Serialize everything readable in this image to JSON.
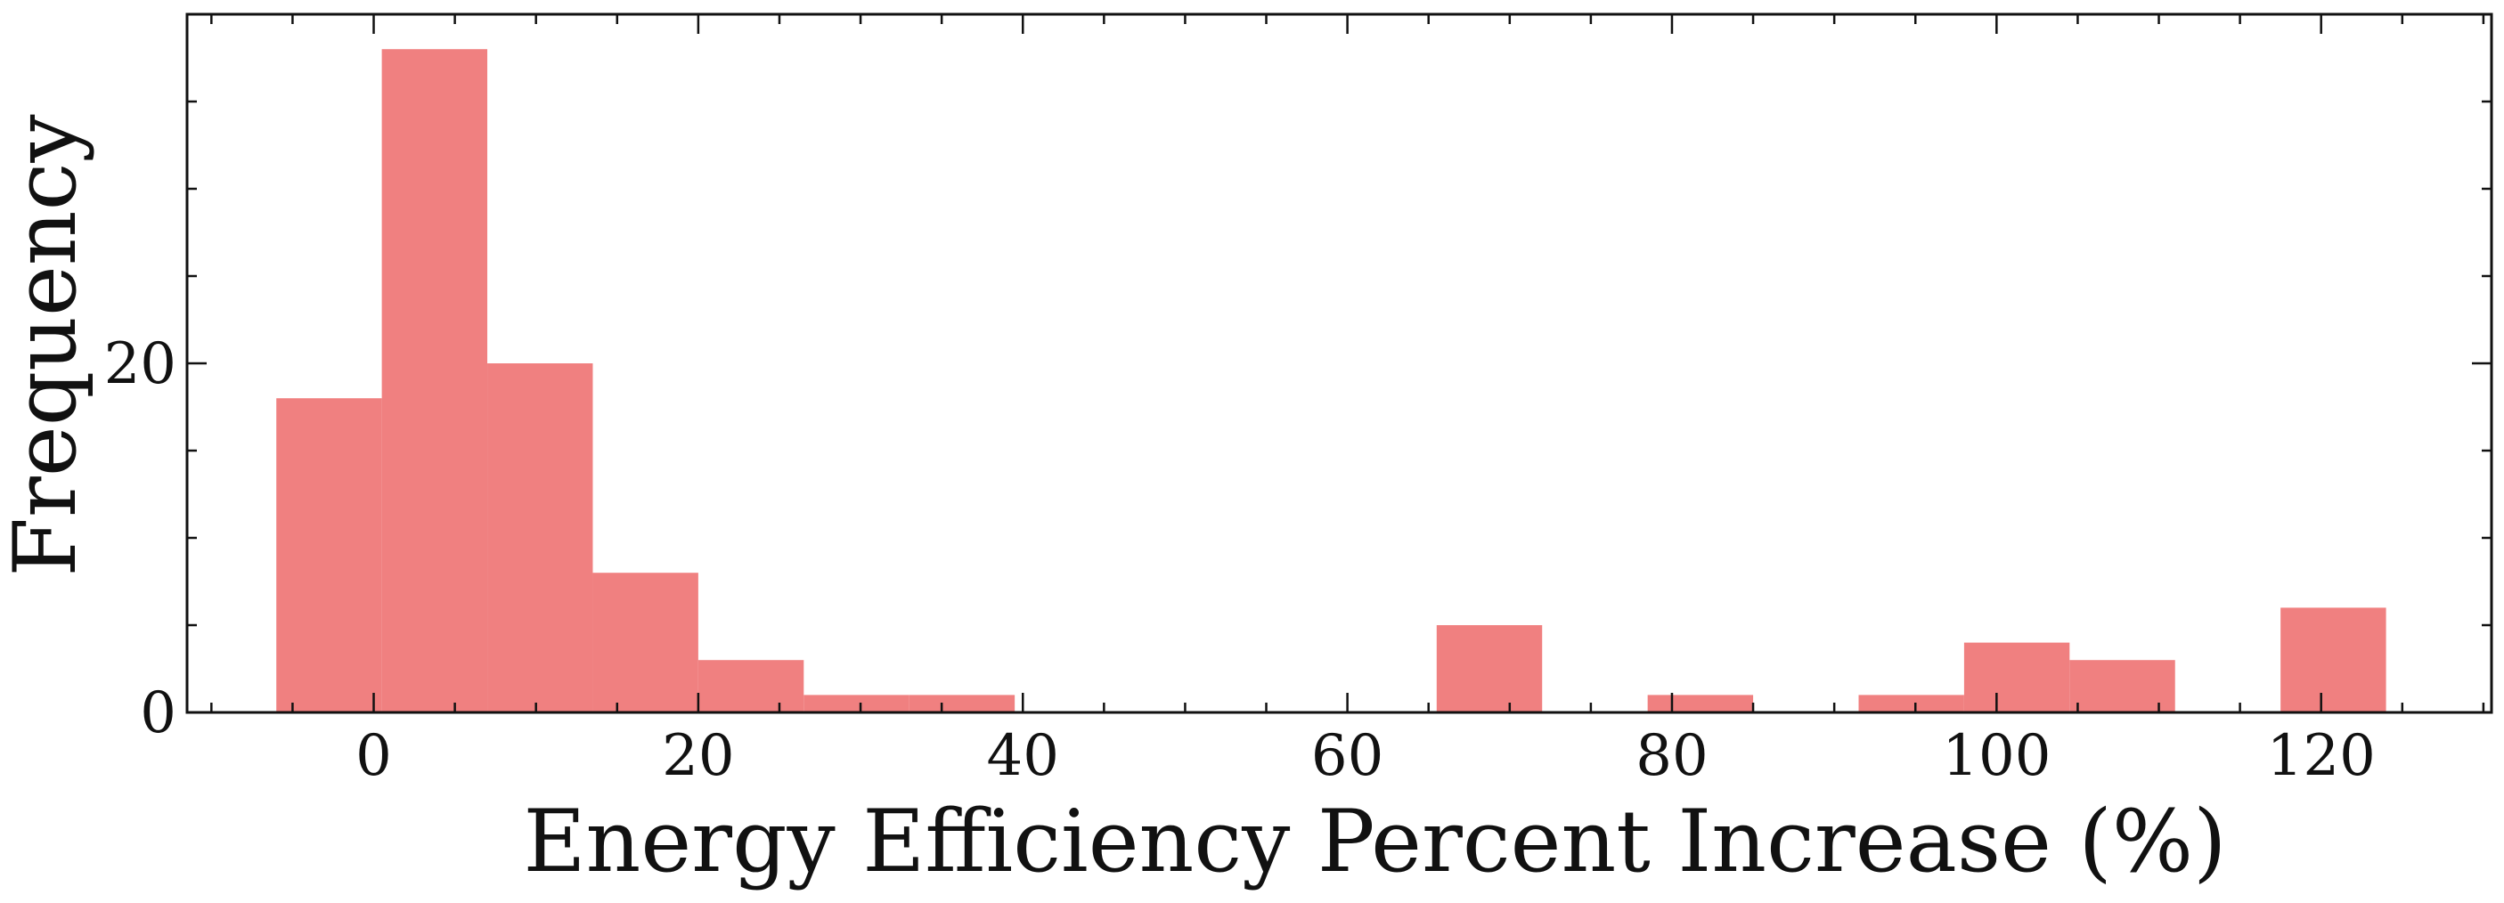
{
  "chart_data": {
    "type": "bar",
    "histogram": true,
    "xlabel": "Energy Efficiency Percent Increase (%)",
    "ylabel": "Frequency",
    "xlim": [
      -11.5,
      130.5
    ],
    "ylim": [
      0,
      40
    ],
    "x_ticks": [
      0,
      20,
      40,
      60,
      80,
      100,
      120
    ],
    "y_ticks": [
      0,
      20
    ],
    "x_minor_step": 5,
    "y_minor_step": 5,
    "tick_direction": "in",
    "grid": false,
    "legend": "none",
    "bar_color": "#f08080",
    "bins": [
      {
        "x0": -6.0,
        "x1": 0.5,
        "count": 18
      },
      {
        "x0": 0.5,
        "x1": 7.0,
        "count": 38
      },
      {
        "x0": 7.0,
        "x1": 13.5,
        "count": 20
      },
      {
        "x0": 13.5,
        "x1": 20.0,
        "count": 8
      },
      {
        "x0": 20.0,
        "x1": 26.5,
        "count": 3
      },
      {
        "x0": 26.5,
        "x1": 33.0,
        "count": 1
      },
      {
        "x0": 33.0,
        "x1": 39.5,
        "count": 1
      },
      {
        "x0": 65.5,
        "x1": 72.0,
        "count": 5
      },
      {
        "x0": 78.5,
        "x1": 85.0,
        "count": 1
      },
      {
        "x0": 91.5,
        "x1": 98.0,
        "count": 1
      },
      {
        "x0": 98.0,
        "x1": 104.5,
        "count": 4
      },
      {
        "x0": 104.5,
        "x1": 111.0,
        "count": 3
      },
      {
        "x0": 117.5,
        "x1": 124.0,
        "count": 6
      }
    ]
  }
}
